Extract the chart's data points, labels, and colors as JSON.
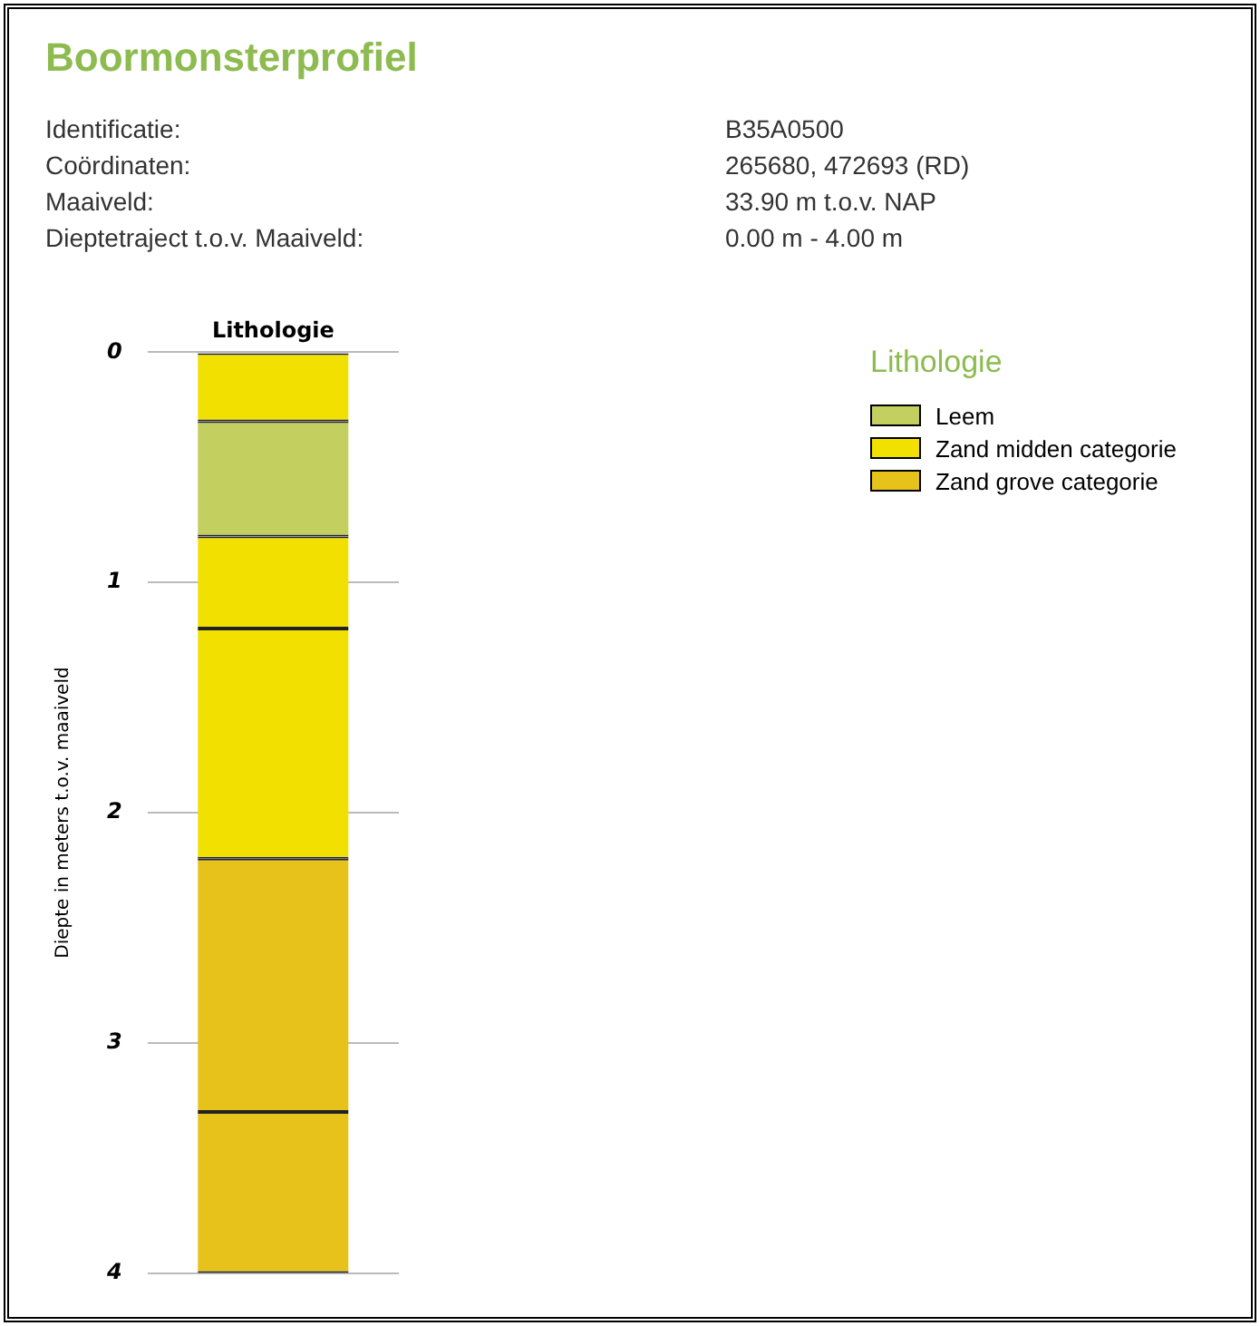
{
  "chart_data": {
    "type": "bar",
    "title": "Boormonsterprofiel",
    "annotations": [
      "Identificatie:",
      "B35A0500",
      "Coördinaten:",
      "265680, 472693 (RD)",
      "Maaiveld:",
      "33.90 m t.o.v. NAP",
      "Dieptetraject t.o.v. Maaiveld:",
      "0.00 m - 4.00 m"
    ],
    "xlabel": "Lithologie",
    "ylabel": "Diepte in meters t.o.v. maaiveld",
    "legend_title": "Lithologie",
    "legend": "top right",
    "grid": "y",
    "tick_labels": "y",
    "stacked": true,
    "categories": [
      null
    ],
    "series": [
      {
        "color": "#f2e100",
        "values": [
          0.3
        ]
      },
      {
        "name": "Leem",
        "color": "#c3cf5f",
        "values": [
          0.5
        ]
      },
      {
        "name": "Zand midden categorie",
        "color": "#f2e100",
        "values": [
          0.4
        ]
      },
      {
        "color": "#f2e100",
        "values": [
          1.0
        ]
      },
      {
        "name": "Zand grove categorie",
        "color": "#e6c21a",
        "values": [
          1.1
        ]
      },
      {
        "color": "#e6c21a",
        "values": [
          0.7
        ]
      }
    ],
    "ylim": [
      4,
      0
    ],
    "yticks": [
      0,
      1,
      2,
      3,
      4
    ]
  }
}
